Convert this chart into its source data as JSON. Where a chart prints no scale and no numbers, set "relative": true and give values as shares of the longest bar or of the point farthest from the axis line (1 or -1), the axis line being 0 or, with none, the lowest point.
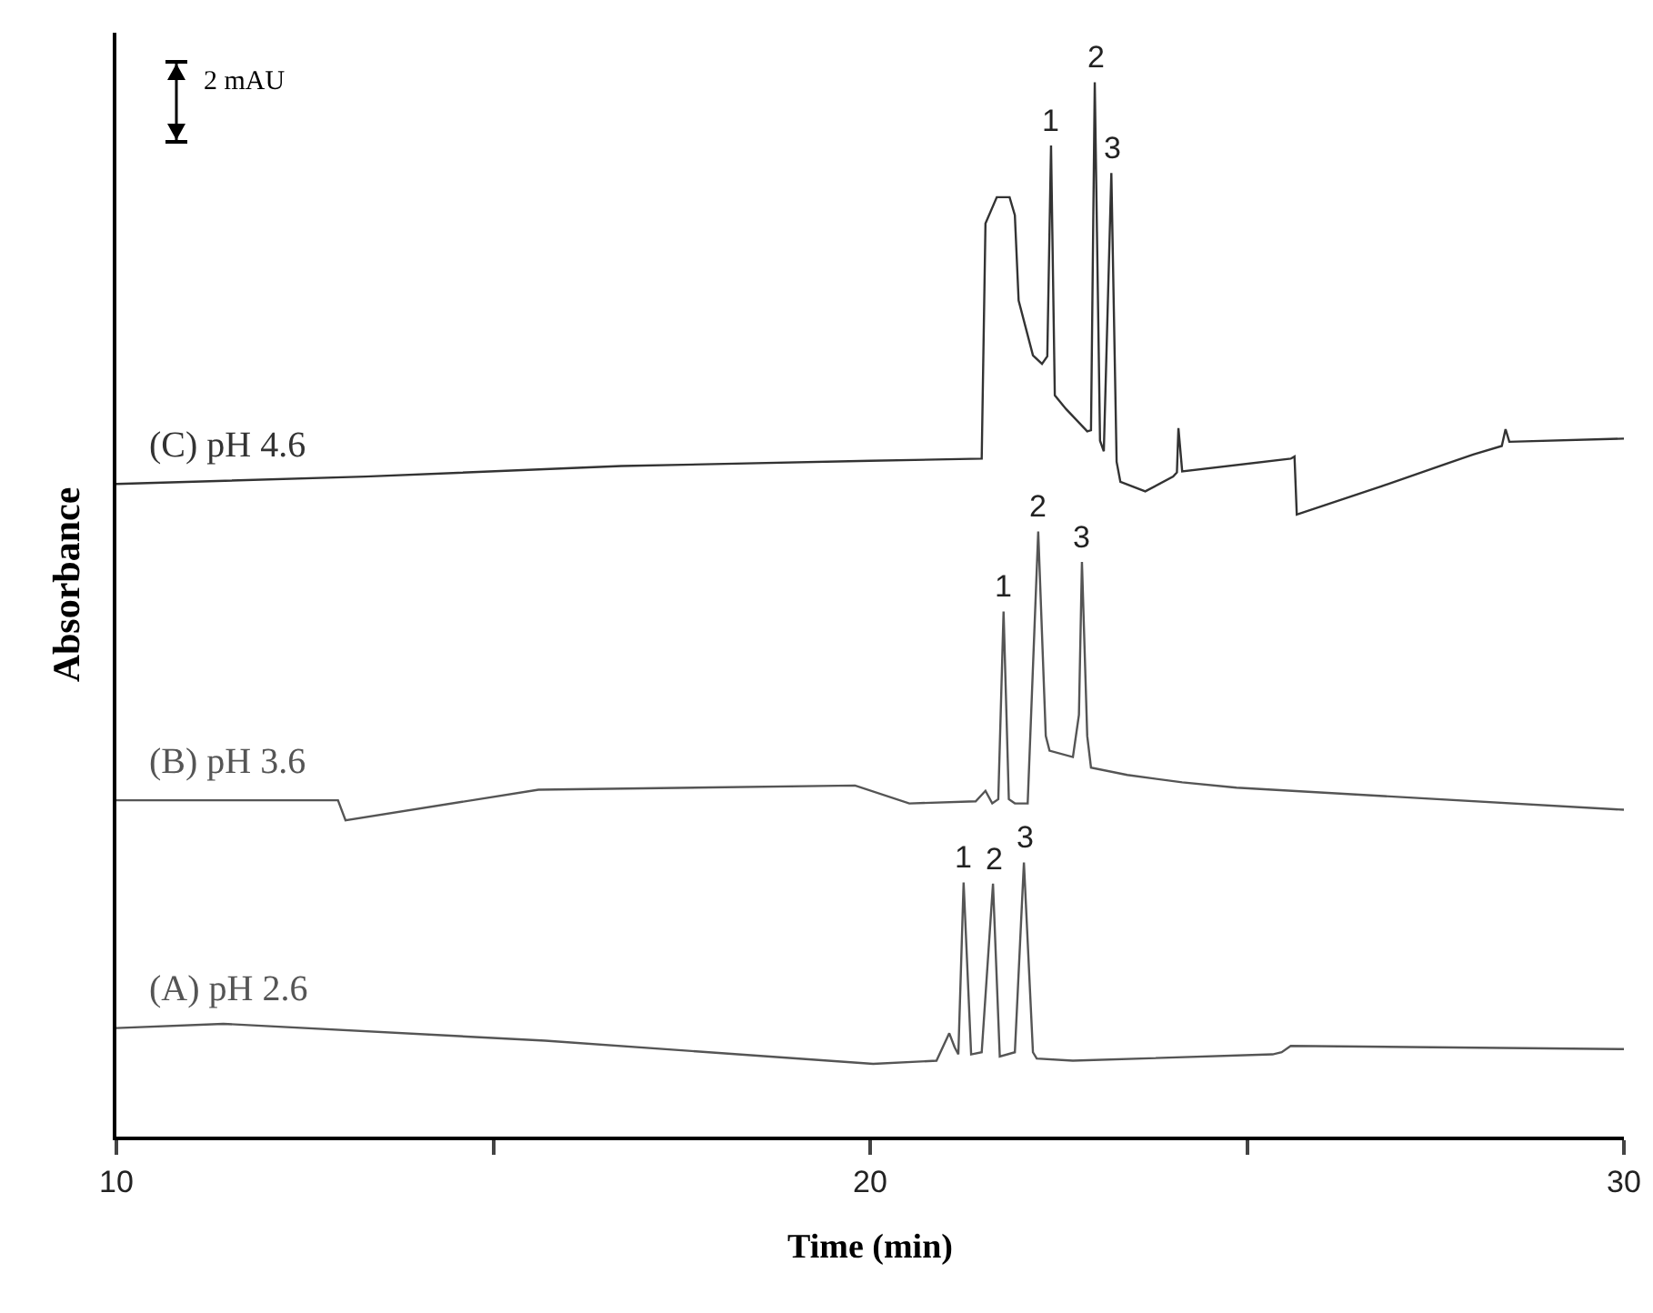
{
  "chart_data": {
    "type": "line",
    "relative": true,
    "xlabel": "Time (min)",
    "ylabel": "Absorbance",
    "xlim": [
      10,
      30
    ],
    "xticks": [
      10,
      {
        "value": 15,
        "label": null
      },
      20,
      {
        "value": 25,
        "label": null
      },
      30
    ],
    "grid": false,
    "legend": false,
    "marker": "none",
    "line_style": "solid",
    "series": [
      {
        "name": "(A) pH 2.6",
        "color": "#555555",
        "x": [
          10,
          11.42,
          15.69,
          20.04,
          20.88,
          21.05,
          21.12,
          21.17,
          21.24,
          21.34,
          21.48,
          21.63,
          21.72,
          21.92,
          22.04,
          22.16,
          22.21,
          22.69,
          25.34,
          25.46,
          25.58,
          30
        ],
        "values": [
          0.103,
          0.107,
          0.091,
          0.069,
          0.072,
          0.098,
          0.085,
          0.078,
          0.241,
          0.078,
          0.08,
          0.24,
          0.076,
          0.08,
          0.26,
          0.08,
          0.074,
          0.072,
          0.078,
          0.08,
          0.086,
          0.083
        ]
      },
      {
        "name": "(B) pH 3.6",
        "color": "#555555",
        "x": [
          10,
          12.94,
          13.04,
          15.6,
          19.8,
          20.52,
          21.4,
          21.53,
          21.62,
          21.7,
          21.77,
          21.84,
          21.92,
          22.09,
          22.23,
          22.33,
          22.38,
          22.69,
          22.77,
          22.81,
          22.88,
          22.93,
          23.41,
          24.14,
          24.86,
          30
        ],
        "values": [
          0.319,
          0.319,
          0.3,
          0.329,
          0.333,
          0.316,
          0.318,
          0.328,
          0.316,
          0.32,
          0.498,
          0.32,
          0.316,
          0.316,
          0.574,
          0.38,
          0.366,
          0.36,
          0.4,
          0.545,
          0.38,
          0.35,
          0.343,
          0.336,
          0.331,
          0.31
        ]
      },
      {
        "name": "(C) pH 4.6",
        "color": "#333333",
        "x": [
          10,
          13.3,
          16.7,
          20.0,
          21.48,
          21.53,
          21.68,
          21.85,
          21.92,
          21.97,
          22.16,
          22.28,
          22.35,
          22.4,
          22.45,
          22.6,
          22.88,
          22.93,
          22.98,
          23.05,
          23.1,
          23.2,
          23.27,
          23.32,
          23.65,
          24.02,
          24.07,
          24.09,
          24.14,
          25.58,
          25.63,
          25.66,
          26.79,
          28.0,
          28.38,
          28.43,
          28.48,
          30
        ],
        "values": [
          0.619,
          0.626,
          0.636,
          0.641,
          0.643,
          0.866,
          0.891,
          0.891,
          0.874,
          0.793,
          0.741,
          0.733,
          0.74,
          0.94,
          0.703,
          0.69,
          0.669,
          0.67,
          1,
          0.66,
          0.65,
          0.914,
          0.64,
          0.621,
          0.612,
          0.626,
          0.63,
          0.672,
          0.631,
          0.643,
          0.645,
          0.59,
          0.617,
          0.647,
          0.655,
          0.671,
          0.659,
          0.662
        ]
      }
    ],
    "annotations": [
      "2 mAU",
      {
        "text": "1",
        "x": 22.4,
        "y": 0.94
      },
      {
        "text": "2",
        "x": 22.98,
        "y": 1
      },
      {
        "text": "3",
        "x": 23.2,
        "y": 0.914
      },
      {
        "text": "1",
        "x": 21.77,
        "y": 0.498
      },
      {
        "text": "2",
        "x": 22.23,
        "y": 0.574
      },
      {
        "text": "3",
        "x": 22.81,
        "y": 0.545
      },
      {
        "text": "1",
        "x": 21.24,
        "y": 0.241
      },
      {
        "text": "2",
        "x": 21.63,
        "y": 0.24
      },
      {
        "text": "3",
        "x": 22.04,
        "y": 0.26
      }
    ]
  }
}
